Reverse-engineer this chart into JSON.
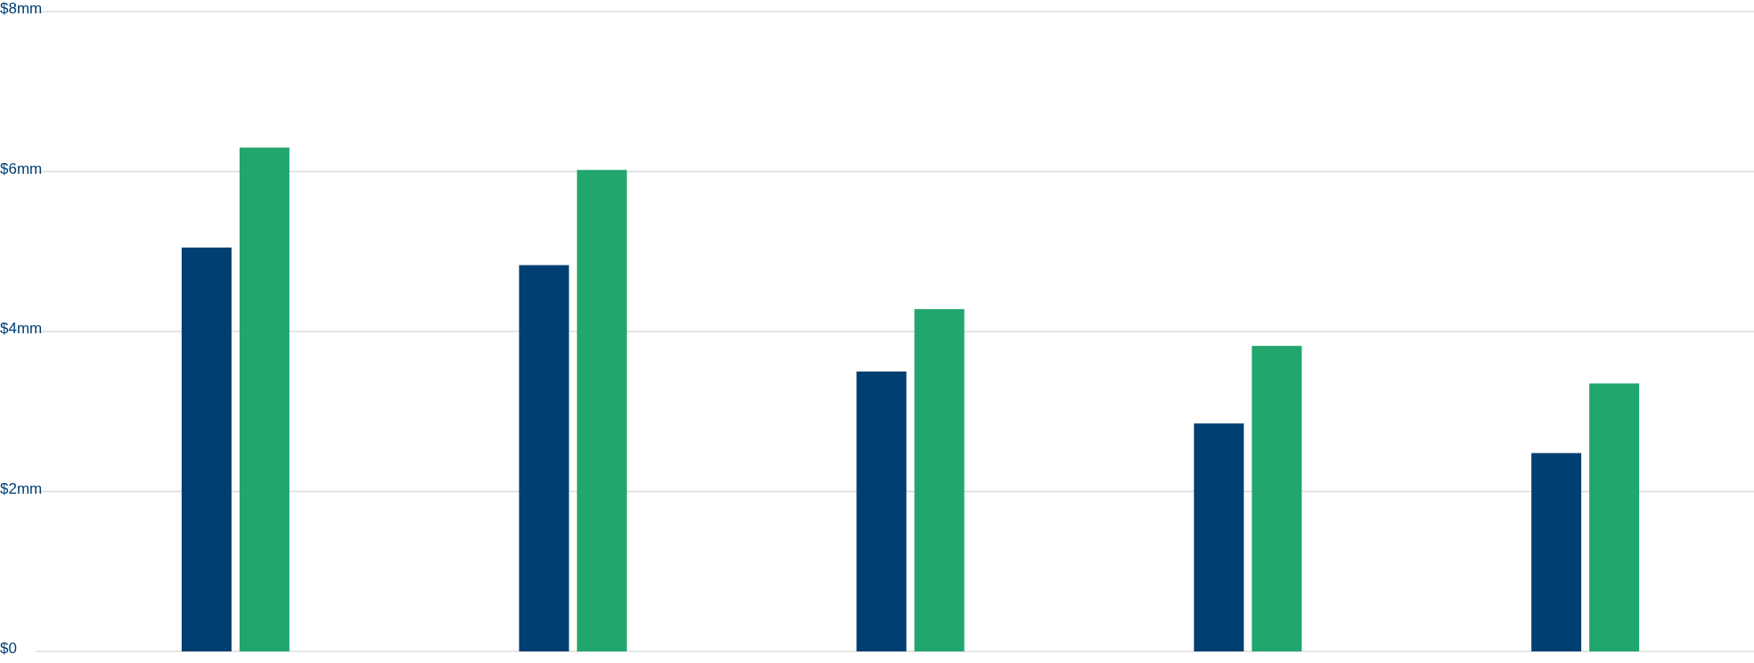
{
  "chart_data": {
    "type": "bar",
    "categories": [
      null,
      null,
      null,
      null,
      null
    ],
    "series": [
      {
        "color": "#003f72",
        "values": [
          5.05,
          4.83,
          3.5,
          2.85,
          2.48
        ]
      },
      {
        "color": "#21a66e",
        "values": [
          6.3,
          6.02,
          4.28,
          3.82,
          3.35
        ]
      }
    ],
    "ylim": [
      0,
      8
    ],
    "yticks": [
      {
        "value": 0,
        "label": "$0"
      },
      {
        "value": 2,
        "label": "$2mm"
      },
      {
        "value": 4,
        "label": "$4mm"
      },
      {
        "value": 6,
        "label": "$6mm"
      },
      {
        "value": 8,
        "label": "$8mm"
      }
    ],
    "grid": "y"
  }
}
